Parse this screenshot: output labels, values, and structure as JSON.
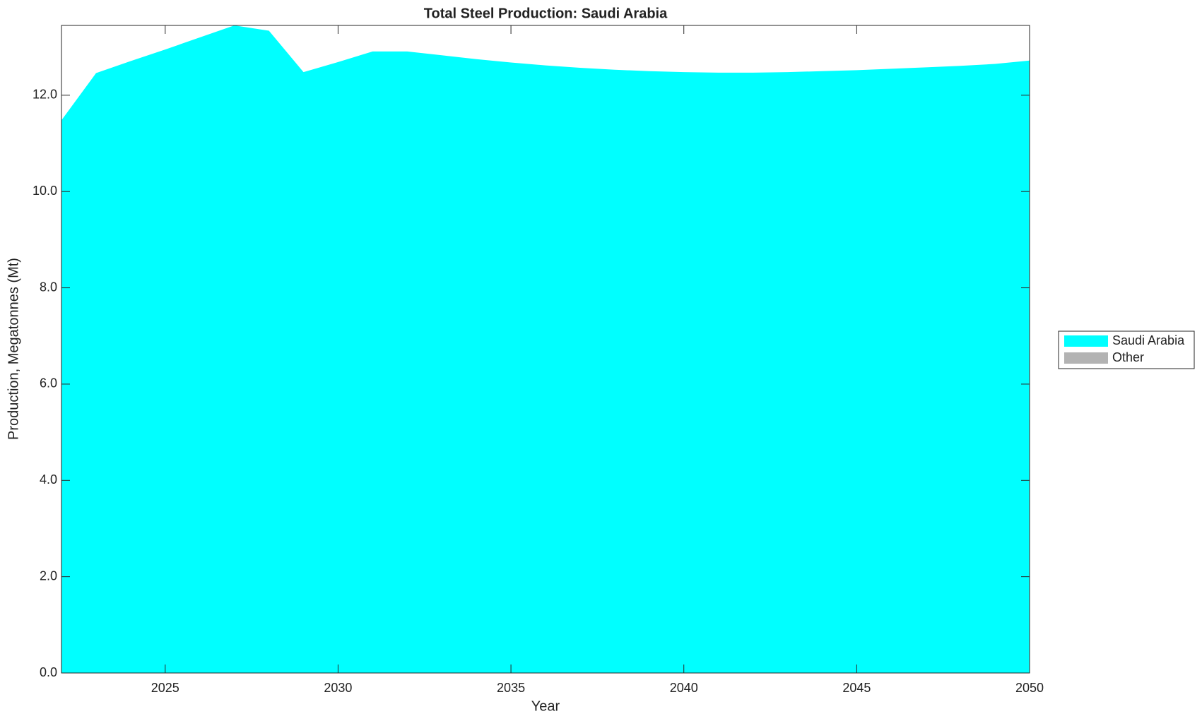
{
  "chart_data": {
    "type": "area",
    "stacked": true,
    "title": "Total Steel Production: Saudi Arabia",
    "x_label": "Year",
    "y_label": "Production, Megatonnes (Mt)",
    "x": [
      2022,
      2023,
      2024,
      2025,
      2026,
      2027,
      2028,
      2029,
      2030,
      2031,
      2032,
      2033,
      2034,
      2035,
      2036,
      2037,
      2038,
      2039,
      2040,
      2041,
      2042,
      2043,
      2044,
      2045,
      2046,
      2047,
      2048,
      2049,
      2050
    ],
    "series": [
      {
        "name": "Saudi Arabia",
        "color": "#00ffff",
        "values": [
          11.48,
          12.46,
          12.71,
          12.95,
          13.2,
          13.45,
          13.34,
          12.48,
          12.69,
          12.91,
          12.91,
          12.83,
          12.75,
          12.68,
          12.62,
          12.57,
          12.53,
          12.5,
          12.48,
          12.47,
          12.47,
          12.48,
          12.5,
          12.52,
          12.55,
          12.58,
          12.61,
          12.65,
          12.72
        ]
      },
      {
        "name": "Other",
        "color": "#b3b3b3",
        "values": [
          0,
          0,
          0,
          0,
          0,
          0,
          0,
          0,
          0,
          0,
          0,
          0,
          0,
          0,
          0,
          0,
          0,
          0,
          0,
          0,
          0,
          0,
          0,
          0,
          0,
          0,
          0,
          0,
          0
        ]
      }
    ],
    "xlim": [
      2022,
      2050
    ],
    "xticks": [
      2025,
      2030,
      2035,
      2040,
      2045,
      2050
    ],
    "ylim": [
      0,
      13.45
    ],
    "yticks": [
      {
        "value": 0,
        "label": "0.0"
      },
      {
        "value": 2,
        "label": "2.0"
      },
      {
        "value": 4,
        "label": "4.0"
      },
      {
        "value": 6,
        "label": "6.0"
      },
      {
        "value": 8,
        "label": "8.0"
      },
      {
        "value": 10,
        "label": "10.0"
      },
      {
        "value": 12,
        "label": "12.0"
      }
    ],
    "legend": "outside-right"
  }
}
